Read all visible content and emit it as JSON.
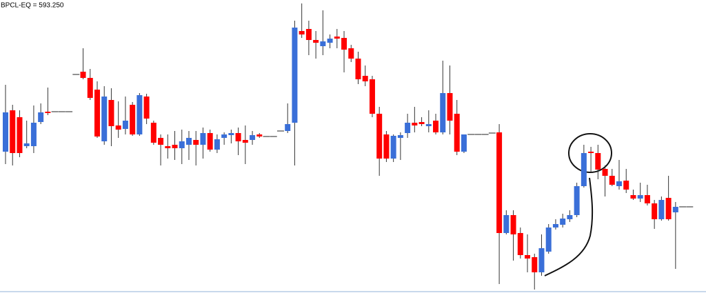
{
  "chart_data": {
    "type": "candlestick",
    "title": "BPCL-EQ = 593.250",
    "up_color": "#3a6fd8",
    "down_color": "#ff0000",
    "flat_color": "#222222",
    "ylim": [
      580.75,
      623.25
    ],
    "open": [
      601.25,
      607.25,
      606.25,
      602.05,
      602.05,
      605.55,
      607.05,
      607.05,
      607.05,
      607.05,
      612.45,
      612.85,
      611.95,
      610.25,
      602.75,
      608.75,
      605.05,
      604.55,
      608.05,
      603.75,
      609.25,
      605.45,
      603.25,
      602.05,
      602.25,
      601.75,
      602.25,
      602.95,
      602.25,
      603.95,
      601.55,
      603.25,
      603.65,
      603.95,
      602.95,
      602.95,
      603.75,
      603.45,
      603.45,
      604.25,
      604.25,
      605.45,
      618.75,
      619.05,
      617.45,
      616.55,
      617.05,
      617.95,
      617.75,
      616.25,
      614.75,
      612.25,
      611.75,
      606.75,
      603.75,
      600.25,
      603.25,
      603.95,
      605.45,
      605.55,
      604.95,
      605.75,
      604.05,
      609.75,
      606.75,
      601.25,
      603.75,
      603.75,
      603.75,
      603.95,
      604.05,
      589.45,
      592.05,
      589.45,
      586.25,
      585.95,
      583.75,
      586.75,
      590.25,
      590.65,
      591.45,
      592.05,
      596.25,
      601.25,
      601.05,
      598.75,
      597.75,
      596.25,
      597.05,
      594.95,
      594.45,
      594.95,
      593.75,
      591.45,
      594.55,
      592.45,
      593.25,
      593.25
    ],
    "high": [
      610.95,
      608.05,
      607.25,
      605.75,
      607.95,
      608.25,
      610.55,
      607.05,
      607.05,
      607.05,
      612.45,
      616.25,
      613.25,
      611.45,
      610.75,
      610.45,
      608.55,
      609.25,
      608.45,
      609.75,
      609.65,
      605.75,
      603.75,
      603.75,
      604.25,
      604.45,
      604.25,
      604.25,
      604.75,
      604.45,
      603.75,
      604.05,
      604.45,
      604.75,
      605.05,
      604.25,
      603.95,
      603.45,
      603.45,
      604.25,
      608.25,
      620.25,
      622.75,
      620.25,
      618.75,
      621.75,
      618.25,
      619.05,
      618.75,
      616.75,
      615.75,
      613.75,
      612.25,
      607.75,
      604.25,
      603.75,
      604.05,
      606.75,
      607.75,
      606.25,
      607.25,
      606.75,
      614.45,
      613.75,
      608.75,
      603.75,
      603.75,
      603.75,
      603.75,
      603.95,
      605.25,
      592.75,
      592.75,
      590.25,
      589.25,
      586.45,
      589.25,
      590.75,
      591.45,
      592.25,
      592.75,
      596.75,
      602.25,
      601.95,
      602.25,
      599.25,
      598.75,
      600.05,
      598.75,
      595.75,
      596.75,
      596.45,
      594.25,
      594.75,
      597.75,
      593.95,
      593.25,
      593.25
    ],
    "low": [
      599.45,
      599.25,
      600.45,
      601.75,
      601.05,
      605.25,
      606.55,
      607.05,
      607.05,
      607.05,
      612.45,
      611.75,
      608.75,
      603.25,
      602.25,
      602.05,
      603.25,
      603.75,
      603.55,
      603.55,
      605.25,
      602.25,
      599.25,
      600.25,
      600.05,
      599.45,
      600.05,
      599.25,
      600.25,
      601.25,
      601.05,
      602.25,
      602.45,
      600.75,
      599.45,
      602.25,
      603.25,
      603.45,
      603.45,
      604.25,
      603.95,
      599.25,
      617.75,
      615.25,
      614.75,
      615.25,
      616.25,
      616.25,
      612.75,
      614.25,
      611.05,
      610.75,
      606.25,
      597.75,
      599.75,
      599.75,
      600.05,
      603.25,
      604.05,
      604.95,
      604.05,
      603.75,
      603.75,
      603.75,
      600.75,
      601.05,
      603.75,
      603.75,
      603.75,
      603.95,
      582.05,
      589.25,
      585.45,
      585.75,
      583.75,
      581.25,
      583.25,
      586.45,
      589.95,
      590.25,
      591.05,
      591.75,
      596.05,
      598.25,
      597.25,
      594.75,
      596.25,
      595.75,
      595.25,
      594.25,
      593.95,
      593.45,
      590.05,
      591.25,
      591.25,
      584.25,
      593.25,
      593.25
    ],
    "close": [
      606.95,
      601.05,
      601.05,
      602.45,
      605.45,
      606.95,
      606.85,
      607.05,
      607.05,
      607.05,
      612.45,
      611.95,
      609.05,
      603.45,
      609.25,
      604.95,
      604.45,
      605.75,
      603.75,
      609.45,
      606.05,
      602.55,
      602.25,
      601.75,
      601.75,
      602.75,
      603.25,
      602.25,
      603.95,
      601.55,
      603.05,
      603.75,
      603.95,
      602.75,
      602.55,
      603.65,
      603.45,
      603.45,
      603.45,
      604.25,
      605.25,
      619.25,
      618.25,
      617.45,
      617.05,
      617.25,
      617.65,
      617.65,
      616.05,
      614.75,
      611.75,
      611.45,
      606.75,
      600.25,
      600.25,
      603.55,
      603.65,
      605.45,
      605.05,
      605.25,
      605.25,
      604.05,
      609.75,
      605.75,
      601.25,
      603.75,
      603.75,
      603.75,
      603.75,
      603.95,
      589.45,
      592.05,
      589.25,
      586.25,
      585.75,
      583.75,
      587.25,
      590.25,
      590.75,
      591.55,
      592.05,
      596.25,
      601.05,
      601.05,
      598.65,
      597.75,
      596.45,
      596.95,
      595.75,
      594.45,
      594.95,
      593.75,
      591.45,
      594.25,
      591.45,
      593.25,
      593.25,
      593.25
    ]
  }
}
